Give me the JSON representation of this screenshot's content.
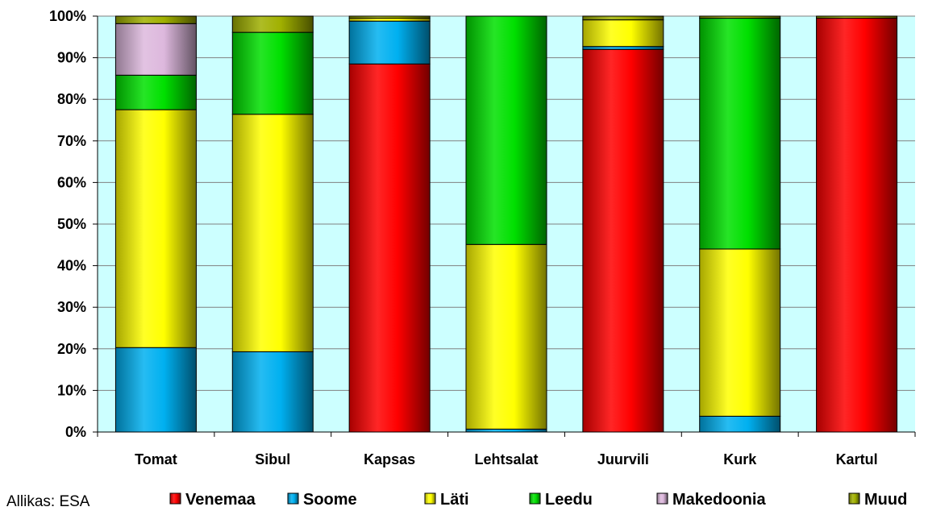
{
  "chart_data": {
    "type": "bar",
    "stacked": true,
    "normalized_percent": true,
    "categories": [
      "Tomat",
      "Sibul",
      "Kapsas",
      "Lehtsalat",
      "Juurvili",
      "Kurk",
      "Kartul"
    ],
    "series": [
      {
        "name": "Venemaa",
        "color": "#ff0000",
        "values": [
          0,
          0,
          88.5,
          0,
          92,
          0,
          99.5
        ]
      },
      {
        "name": "Soome",
        "color": "#00b0f0",
        "values": [
          20.3,
          19.3,
          10.3,
          0.7,
          0.7,
          3.8,
          0
        ]
      },
      {
        "name": "Läti",
        "color": "#ffff00",
        "values": [
          57.2,
          57.1,
          0.7,
          44.4,
          6.4,
          40.2,
          0
        ]
      },
      {
        "name": "Leedu",
        "color": "#00e000",
        "values": [
          8.3,
          19.7,
          0,
          54.9,
          0,
          55.5,
          0
        ]
      },
      {
        "name": "Makedoonia",
        "color": "#ddb8dd",
        "values": [
          12.4,
          0,
          0,
          0,
          0,
          0,
          0
        ]
      },
      {
        "name": "Muud",
        "color": "#a0b000",
        "values": [
          1.8,
          3.9,
          0.5,
          0,
          0.9,
          0.5,
          0.5
        ]
      }
    ],
    "yticks": [
      "0%",
      "10%",
      "20%",
      "30%",
      "40%",
      "50%",
      "60%",
      "70%",
      "80%",
      "90%",
      "100%"
    ],
    "ylim": [
      0,
      100
    ],
    "grid": true,
    "legend_position": "bottom",
    "plot_background": "#ccffff",
    "source_note": "Allikas: ESA"
  }
}
